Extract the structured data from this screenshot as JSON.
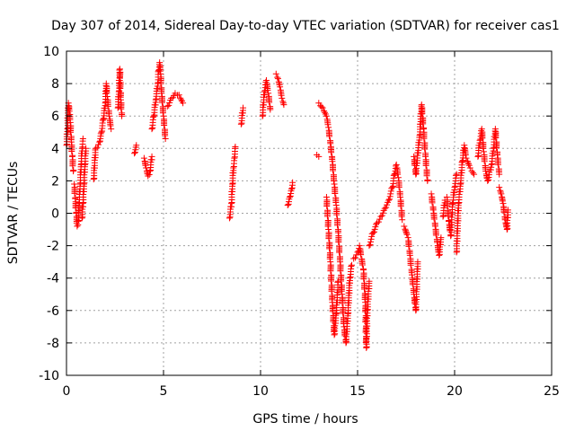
{
  "chart_data": {
    "type": "scatter",
    "title": "Day 307 of 2014, Sidereal Day-to-day VTEC variation (SDTVAR) for receiver cas1",
    "xlabel": "GPS time / hours",
    "ylabel": "SDTVAR / TECUs",
    "xlim": [
      0,
      25
    ],
    "ylim": [
      -10,
      10
    ],
    "xticks": [
      0,
      5,
      10,
      15,
      20,
      25
    ],
    "yticks": [
      -10,
      -8,
      -6,
      -4,
      -2,
      0,
      2,
      4,
      6,
      8,
      10
    ],
    "xtick_labels": [
      "0",
      "5",
      "10",
      "15",
      "20",
      "25"
    ],
    "ytick_labels": [
      "-10",
      "-8",
      "-6",
      "-4",
      "-2",
      "0",
      "2",
      "4",
      "6",
      "8",
      "10"
    ],
    "grid": true,
    "marker": "+",
    "color": "#ff0000",
    "series": [
      {
        "name": "cas1",
        "segments": [
          [
            [
              0.0,
              4.2
            ],
            [
              0.05,
              5.2
            ],
            [
              0.1,
              6.8
            ],
            [
              0.15,
              6.3
            ],
            [
              0.2,
              5.6
            ],
            [
              0.25,
              4.4
            ],
            [
              0.3,
              3.5
            ],
            [
              0.35,
              2.6
            ]
          ],
          [
            [
              0.4,
              1.8
            ],
            [
              0.45,
              0.9
            ],
            [
              0.5,
              0.0
            ],
            [
              0.55,
              -0.8
            ],
            [
              0.6,
              -0.5
            ],
            [
              0.65,
              0.6
            ],
            [
              0.7,
              1.8
            ],
            [
              0.75,
              3.0
            ],
            [
              0.8,
              4.0
            ],
            [
              0.85,
              4.6
            ]
          ],
          [
            [
              0.8,
              -0.3
            ],
            [
              0.85,
              0.6
            ],
            [
              0.9,
              1.8
            ],
            [
              0.95,
              3.0
            ],
            [
              1.0,
              4.0
            ]
          ],
          [
            [
              1.4,
              2.1
            ],
            [
              1.5,
              4.0
            ],
            [
              1.7,
              4.4
            ],
            [
              1.8,
              5.0
            ],
            [
              1.9,
              5.8
            ],
            [
              2.0,
              6.8
            ],
            [
              2.05,
              8.0
            ],
            [
              2.1,
              7.2
            ],
            [
              2.2,
              6.0
            ],
            [
              2.3,
              5.2
            ]
          ],
          [
            [
              2.65,
              6.5
            ],
            [
              2.7,
              7.5
            ],
            [
              2.75,
              8.9
            ],
            [
              2.8,
              7.0
            ],
            [
              2.85,
              6.0
            ]
          ],
          [
            [
              3.5,
              3.7
            ],
            [
              3.6,
              4.2
            ]
          ],
          [
            [
              4.0,
              3.4
            ],
            [
              4.1,
              2.8
            ],
            [
              4.2,
              2.3
            ],
            [
              4.3,
              2.6
            ],
            [
              4.4,
              3.5
            ]
          ],
          [
            [
              4.4,
              5.2
            ],
            [
              4.5,
              6.0
            ],
            [
              4.6,
              7.0
            ],
            [
              4.7,
              8.0
            ],
            [
              4.75,
              8.8
            ],
            [
              4.8,
              9.3
            ],
            [
              4.85,
              8.6
            ],
            [
              4.9,
              7.4
            ],
            [
              5.0,
              6.0
            ],
            [
              5.1,
              4.6
            ]
          ],
          [
            [
              5.2,
              6.6
            ],
            [
              5.4,
              7.1
            ],
            [
              5.6,
              7.4
            ],
            [
              5.8,
              7.3
            ],
            [
              6.0,
              6.8
            ]
          ],
          [
            [
              8.4,
              -0.3
            ],
            [
              8.5,
              0.6
            ],
            [
              8.55,
              1.8
            ],
            [
              8.6,
              2.8
            ],
            [
              8.65,
              3.4
            ],
            [
              8.7,
              4.1
            ]
          ],
          [
            [
              9.0,
              5.5
            ],
            [
              9.1,
              6.5
            ]
          ],
          [
            [
              10.1,
              6.0
            ],
            [
              10.2,
              7.5
            ],
            [
              10.3,
              8.2
            ],
            [
              10.4,
              7.4
            ],
            [
              10.5,
              6.4
            ]
          ],
          [
            [
              10.8,
              8.6
            ],
            [
              10.9,
              8.3
            ],
            [
              11.0,
              7.8
            ],
            [
              11.1,
              7.1
            ],
            [
              11.2,
              6.7
            ]
          ],
          [
            [
              11.4,
              0.5
            ],
            [
              11.5,
              1.0
            ],
            [
              11.6,
              1.5
            ],
            [
              11.65,
              1.9
            ]
          ],
          [
            [
              12.9,
              3.6
            ],
            [
              13.0,
              3.5
            ]
          ],
          [
            [
              13.0,
              6.8
            ],
            [
              13.2,
              6.5
            ],
            [
              13.4,
              6.0
            ],
            [
              13.5,
              5.3
            ],
            [
              13.6,
              4.3
            ],
            [
              13.7,
              3.2
            ],
            [
              13.8,
              1.8
            ],
            [
              13.9,
              0.5
            ],
            [
              14.0,
              -1.2
            ],
            [
              14.1,
              -3.0
            ],
            [
              14.2,
              -5.0
            ],
            [
              14.3,
              -7.0
            ],
            [
              14.4,
              -8.0
            ],
            [
              14.5,
              -6.2
            ],
            [
              14.6,
              -4.0
            ],
            [
              14.7,
              -3.2
            ]
          ],
          [
            [
              13.4,
              1.0
            ],
            [
              13.5,
              -1.0
            ],
            [
              13.6,
              -3.0
            ],
            [
              13.7,
              -5.5
            ],
            [
              13.8,
              -7.5
            ],
            [
              13.9,
              -6.2
            ],
            [
              14.0,
              -4.2
            ]
          ],
          [
            [
              14.8,
              -2.8
            ],
            [
              15.0,
              -2.4
            ],
            [
              15.1,
              -2.0
            ],
            [
              15.3,
              -3.5
            ],
            [
              15.4,
              -5.5
            ],
            [
              15.45,
              -8.3
            ],
            [
              15.5,
              -6.0
            ],
            [
              15.6,
              -4.2
            ]
          ],
          [
            [
              15.6,
              -2.0
            ],
            [
              15.8,
              -1.2
            ],
            [
              16.0,
              -0.6
            ],
            [
              16.2,
              -0.2
            ],
            [
              16.4,
              0.3
            ],
            [
              16.6,
              0.8
            ],
            [
              16.8,
              1.6
            ],
            [
              16.9,
              2.4
            ],
            [
              17.0,
              3.0
            ],
            [
              17.1,
              2.2
            ],
            [
              17.2,
              1.0
            ],
            [
              17.3,
              -0.4
            ]
          ],
          [
            [
              17.4,
              -0.8
            ],
            [
              17.6,
              -1.5
            ],
            [
              17.7,
              -2.6
            ],
            [
              17.8,
              -3.8
            ],
            [
              17.9,
              -5.0
            ],
            [
              18.0,
              -6.0
            ],
            [
              18.1,
              -3.0
            ]
          ],
          [
            [
              17.9,
              3.5
            ],
            [
              18.0,
              2.4
            ],
            [
              18.2,
              4.8
            ],
            [
              18.3,
              6.7
            ],
            [
              18.4,
              5.2
            ],
            [
              18.5,
              3.5
            ],
            [
              18.6,
              2.0
            ]
          ],
          [
            [
              18.8,
              1.2
            ],
            [
              18.9,
              0.2
            ],
            [
              19.0,
              -0.8
            ],
            [
              19.1,
              -1.8
            ],
            [
              19.2,
              -2.6
            ],
            [
              19.3,
              -1.5
            ]
          ],
          [
            [
              19.4,
              -0.2
            ],
            [
              19.5,
              0.8
            ],
            [
              19.6,
              1.0
            ],
            [
              19.7,
              -0.5
            ],
            [
              19.8,
              -1.4
            ],
            [
              19.9,
              0.6
            ],
            [
              20.0,
              1.6
            ],
            [
              20.1,
              2.4
            ]
          ],
          [
            [
              20.1,
              -2.4
            ],
            [
              20.2,
              0.6
            ],
            [
              20.3,
              1.8
            ],
            [
              20.4,
              3.2
            ],
            [
              20.5,
              4.2
            ],
            [
              20.6,
              3.4
            ],
            [
              20.8,
              2.8
            ],
            [
              21.0,
              2.4
            ]
          ],
          [
            [
              21.2,
              3.5
            ],
            [
              21.3,
              4.5
            ],
            [
              21.4,
              5.2
            ],
            [
              21.5,
              3.8
            ],
            [
              21.6,
              2.6
            ],
            [
              21.7,
              2.0
            ],
            [
              21.9,
              3.0
            ],
            [
              22.0,
              4.0
            ],
            [
              22.1,
              5.2
            ],
            [
              22.2,
              3.6
            ],
            [
              22.3,
              2.4
            ]
          ],
          [
            [
              22.3,
              1.6
            ],
            [
              22.4,
              1.2
            ],
            [
              22.5,
              0.6
            ],
            [
              22.6,
              -0.4
            ],
            [
              22.7,
              -1.0
            ],
            [
              22.75,
              0.2
            ]
          ]
        ]
      }
    ]
  }
}
